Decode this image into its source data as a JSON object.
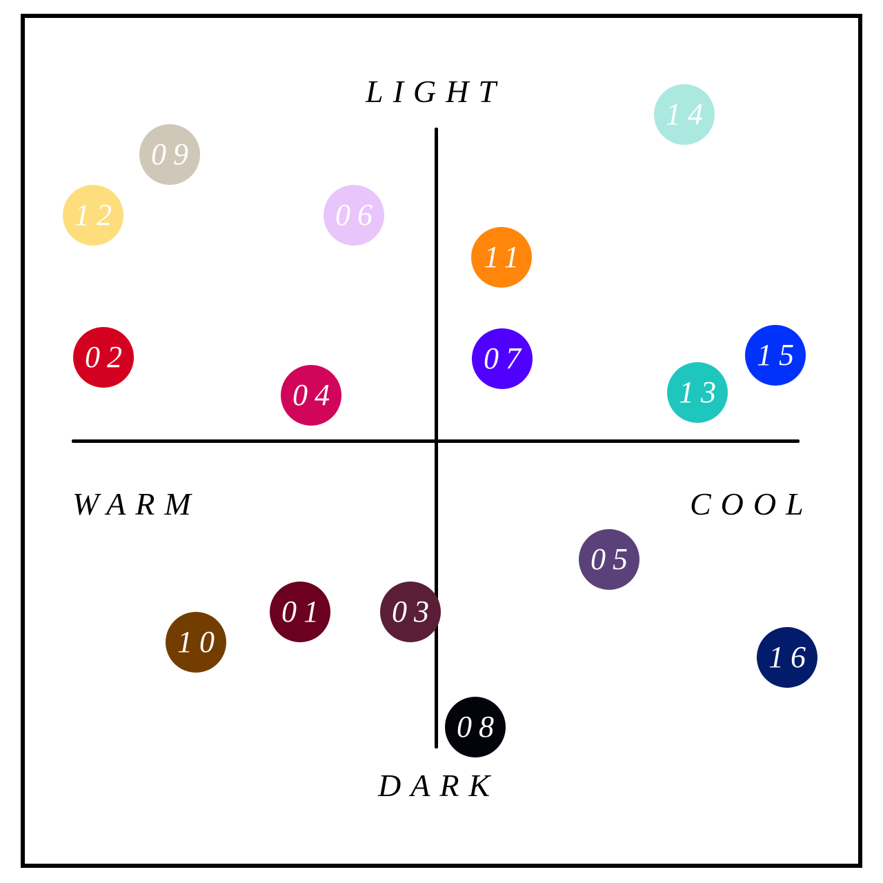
{
  "axes": {
    "top_label": "LIGHT",
    "bottom_label": "DARK",
    "left_label": "WARM",
    "right_label": "COOL"
  },
  "swatches": [
    {
      "label": "01",
      "color": "#6b0020"
    },
    {
      "label": "02",
      "color": "#d4001f"
    },
    {
      "label": "03",
      "color": "#5a1e37"
    },
    {
      "label": "04",
      "color": "#d1055a"
    },
    {
      "label": "05",
      "color": "#5b4179"
    },
    {
      "label": "06",
      "color": "#e8c5fb"
    },
    {
      "label": "07",
      "color": "#5000ff"
    },
    {
      "label": "08",
      "color": "#03030b"
    },
    {
      "label": "09",
      "color": "#cfc7b8"
    },
    {
      "label": "10",
      "color": "#733d00"
    },
    {
      "label": "11",
      "color": "#ff860a"
    },
    {
      "label": "12",
      "color": "#fedd7d"
    },
    {
      "label": "13",
      "color": "#1fc6bd"
    },
    {
      "label": "14",
      "color": "#abe9e0"
    },
    {
      "label": "15",
      "color": "#0032fb"
    },
    {
      "label": "16",
      "color": "#021b6b"
    }
  ]
}
